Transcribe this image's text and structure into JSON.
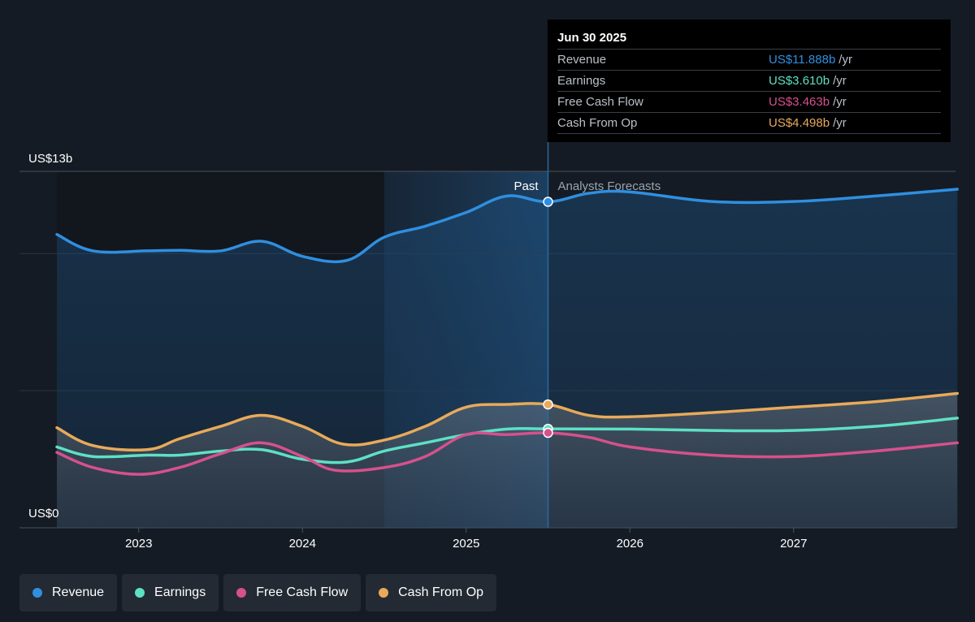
{
  "chart_data": {
    "type": "area",
    "y_axis": {
      "top_label": "US$13b",
      "bottom_label": "US$0",
      "ylim": [
        0,
        13
      ]
    },
    "x_axis": {
      "ticks": [
        "2023",
        "2024",
        "2025",
        "2026",
        "2027"
      ],
      "xlim": [
        2022.5,
        2028.0
      ]
    },
    "past_label": "Past",
    "forecast_label": "Analysts Forecasts",
    "divider_x": 2025.5,
    "highlight_start_x": 2024.5,
    "series": [
      {
        "name": "Revenue",
        "color": "#2f8fe0",
        "fill": true,
        "points": [
          [
            2022.5,
            10.7
          ],
          [
            2022.72,
            10.1
          ],
          [
            2023.05,
            10.1
          ],
          [
            2023.25,
            10.12
          ],
          [
            2023.5,
            10.1
          ],
          [
            2023.75,
            10.45
          ],
          [
            2024.0,
            9.9
          ],
          [
            2024.27,
            9.75
          ],
          [
            2024.5,
            10.6
          ],
          [
            2024.75,
            11.0
          ],
          [
            2025.0,
            11.5
          ],
          [
            2025.25,
            12.1
          ],
          [
            2025.5,
            11.888
          ],
          [
            2025.75,
            12.2
          ],
          [
            2026.0,
            12.25
          ],
          [
            2026.5,
            11.9
          ],
          [
            2027.0,
            11.9
          ],
          [
            2027.5,
            12.1
          ],
          [
            2028.0,
            12.35
          ]
        ]
      },
      {
        "name": "Earnings",
        "color": "#5ee0c4",
        "fill": false,
        "points": [
          [
            2022.5,
            2.95
          ],
          [
            2022.72,
            2.6
          ],
          [
            2023.05,
            2.65
          ],
          [
            2023.25,
            2.65
          ],
          [
            2023.5,
            2.8
          ],
          [
            2023.75,
            2.85
          ],
          [
            2024.0,
            2.5
          ],
          [
            2024.27,
            2.4
          ],
          [
            2024.5,
            2.8
          ],
          [
            2024.75,
            3.1
          ],
          [
            2025.0,
            3.4
          ],
          [
            2025.25,
            3.6
          ],
          [
            2025.5,
            3.61
          ],
          [
            2026.0,
            3.6
          ],
          [
            2026.5,
            3.55
          ],
          [
            2027.0,
            3.55
          ],
          [
            2027.5,
            3.7
          ],
          [
            2028.0,
            4.0
          ]
        ]
      },
      {
        "name": "Free Cash Flow",
        "color": "#d6518c",
        "fill": false,
        "points": [
          [
            2022.5,
            2.75
          ],
          [
            2022.72,
            2.2
          ],
          [
            2023.0,
            1.95
          ],
          [
            2023.25,
            2.2
          ],
          [
            2023.5,
            2.7
          ],
          [
            2023.75,
            3.1
          ],
          [
            2024.0,
            2.6
          ],
          [
            2024.2,
            2.1
          ],
          [
            2024.5,
            2.2
          ],
          [
            2024.75,
            2.6
          ],
          [
            2025.0,
            3.4
          ],
          [
            2025.25,
            3.4
          ],
          [
            2025.5,
            3.463
          ],
          [
            2025.75,
            3.3
          ],
          [
            2026.0,
            2.95
          ],
          [
            2026.5,
            2.65
          ],
          [
            2027.0,
            2.6
          ],
          [
            2027.5,
            2.8
          ],
          [
            2028.0,
            3.1
          ]
        ]
      },
      {
        "name": "Cash From Op",
        "color": "#e8aa5a",
        "fill": false,
        "points": [
          [
            2022.5,
            3.65
          ],
          [
            2022.72,
            3.0
          ],
          [
            2023.05,
            2.85
          ],
          [
            2023.25,
            3.25
          ],
          [
            2023.5,
            3.7
          ],
          [
            2023.75,
            4.1
          ],
          [
            2024.0,
            3.7
          ],
          [
            2024.25,
            3.05
          ],
          [
            2024.5,
            3.2
          ],
          [
            2024.75,
            3.7
          ],
          [
            2025.0,
            4.4
          ],
          [
            2025.25,
            4.5
          ],
          [
            2025.5,
            4.498
          ],
          [
            2025.75,
            4.1
          ],
          [
            2026.0,
            4.05
          ],
          [
            2026.5,
            4.2
          ],
          [
            2027.0,
            4.4
          ],
          [
            2027.5,
            4.6
          ],
          [
            2028.0,
            4.9
          ]
        ]
      }
    ]
  },
  "tooltip": {
    "date": "Jun 30 2025",
    "rows": [
      {
        "name": "Revenue",
        "value": "US$11.888b",
        "unit": "/yr",
        "color": "#2f8fe0"
      },
      {
        "name": "Earnings",
        "value": "US$3.610b",
        "unit": "/yr",
        "color": "#5ee0c4"
      },
      {
        "name": "Free Cash Flow",
        "value": "US$3.463b",
        "unit": "/yr",
        "color": "#d6518c"
      },
      {
        "name": "Cash From Op",
        "value": "US$4.498b",
        "unit": "/yr",
        "color": "#e8aa5a"
      }
    ]
  },
  "legend": [
    {
      "label": "Revenue",
      "color": "#2f8fe0"
    },
    {
      "label": "Earnings",
      "color": "#5ee0c4"
    },
    {
      "label": "Free Cash Flow",
      "color": "#d6518c"
    },
    {
      "label": "Cash From Op",
      "color": "#e8aa5a"
    }
  ]
}
